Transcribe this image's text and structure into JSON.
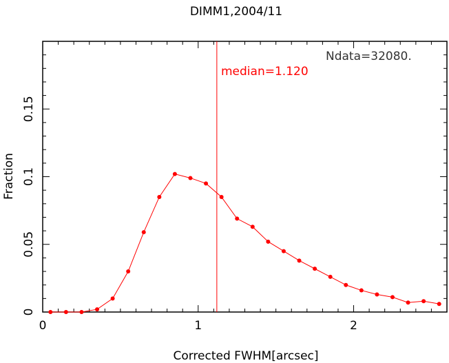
{
  "chart_data": {
    "type": "line",
    "title": "DIMM1,2004/11",
    "xlabel": "Corrected FWHM[arcsec]",
    "ylabel": "Fraction",
    "xlim": [
      0,
      2.6
    ],
    "ylim": [
      0,
      0.2
    ],
    "x_ticks": [
      "0",
      "1",
      "2"
    ],
    "y_ticks": [
      "0",
      "0.05",
      "0.1",
      "0.15"
    ],
    "grid": false,
    "colors": {
      "series": "#ff0000",
      "axes": "#000000",
      "annotation_text": "#333333"
    },
    "series": [
      {
        "x": [
          0.05,
          0.15,
          0.25,
          0.35,
          0.45,
          0.55,
          0.65,
          0.75,
          0.85,
          0.95,
          1.05,
          1.15,
          1.25,
          1.35,
          1.45,
          1.55,
          1.65,
          1.75,
          1.85,
          1.95,
          2.05,
          2.15,
          2.25,
          2.35,
          2.45,
          2.55
        ],
        "y": [
          0.0,
          0.0,
          0.0,
          0.002,
          0.01,
          0.03,
          0.059,
          0.085,
          0.102,
          0.099,
          0.095,
          0.085,
          0.069,
          0.063,
          0.052,
          0.045,
          0.038,
          0.032,
          0.026,
          0.02,
          0.016,
          0.013,
          0.011,
          0.007,
          0.008,
          0.006
        ]
      }
    ],
    "median": {
      "value": 1.12,
      "label": "median=1.120"
    },
    "annotation": "Ndata=32080."
  }
}
